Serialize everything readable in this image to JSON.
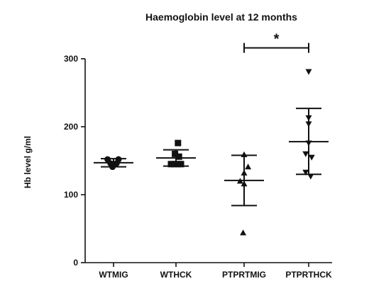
{
  "chart_data": {
    "type": "scatter",
    "title": "Haemoglobin level at 12 months",
    "xlabel": "",
    "ylabel": "Hb level g/ml",
    "ylim": [
      0,
      300
    ],
    "yticks": [
      0,
      100,
      200,
      300
    ],
    "grid": false,
    "legend": "none",
    "categories": [
      "WTMIG",
      "WTHCK",
      "PTPRTMIG",
      "PTPRTHCK"
    ],
    "groups": [
      {
        "category": "WTMIG",
        "marker": "circle",
        "points": [
          {
            "offset": -0.6,
            "y": 152
          },
          {
            "offset": 0.5,
            "y": 152
          },
          {
            "offset": -0.3,
            "y": 146
          },
          {
            "offset": 0.3,
            "y": 146
          },
          {
            "offset": -0.1,
            "y": 141
          }
        ],
        "mean": 147,
        "sd_low": 141,
        "sd_high": 153
      },
      {
        "category": "WTHCK",
        "marker": "square",
        "points": [
          {
            "offset": 0.2,
            "y": 176
          },
          {
            "offset": -0.1,
            "y": 160
          },
          {
            "offset": 0.3,
            "y": 156
          },
          {
            "offset": -0.5,
            "y": 145
          },
          {
            "offset": -0.2,
            "y": 145
          },
          {
            "offset": 0.2,
            "y": 145
          },
          {
            "offset": 0.5,
            "y": 145
          }
        ],
        "mean": 154,
        "sd_low": 142,
        "sd_high": 166
      },
      {
        "category": "PTPRTMIG",
        "marker": "triangle-up",
        "points": [
          {
            "offset": 0.0,
            "y": 159
          },
          {
            "offset": 0.4,
            "y": 141
          },
          {
            "offset": 0.0,
            "y": 132
          },
          {
            "offset": -0.4,
            "y": 120
          },
          {
            "offset": 0.0,
            "y": 116
          },
          {
            "offset": -0.1,
            "y": 44
          }
        ],
        "mean": 121,
        "sd_low": 84,
        "sd_high": 158
      },
      {
        "category": "PTPRTHCK",
        "marker": "triangle-down",
        "points": [
          {
            "offset": 0.0,
            "y": 281
          },
          {
            "offset": 0.0,
            "y": 213
          },
          {
            "offset": 0.0,
            "y": 204
          },
          {
            "offset": 0.0,
            "y": 176
          },
          {
            "offset": -0.3,
            "y": 160
          },
          {
            "offset": 0.3,
            "y": 155
          },
          {
            "offset": -0.3,
            "y": 133
          },
          {
            "offset": 0.2,
            "y": 127
          }
        ],
        "mean": 178,
        "sd_low": 130,
        "sd_high": 227
      }
    ],
    "annotations": [
      {
        "type": "significance",
        "from": "PTPRTMIG",
        "to": "PTPRTHCK",
        "y": 316,
        "text": "*"
      }
    ]
  }
}
